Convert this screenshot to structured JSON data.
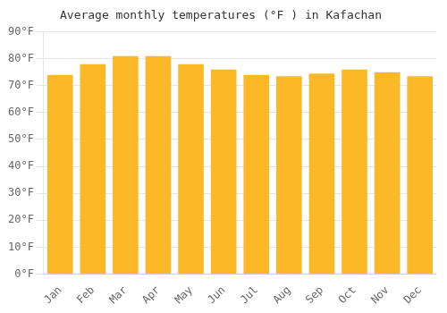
{
  "chart_data": {
    "type": "bar",
    "title": "Average monthly temperatures (°F ) in Kafachan",
    "categories": [
      "Jan",
      "Feb",
      "Mar",
      "Apr",
      "May",
      "Jun",
      "Jul",
      "Aug",
      "Sep",
      "Oct",
      "Nov",
      "Dec"
    ],
    "values": [
      74,
      78,
      81,
      81,
      78,
      76,
      74,
      73.5,
      74.5,
      76,
      75,
      73.5
    ],
    "color": "#FDB827",
    "ylim": [
      0,
      90
    ],
    "yticks": [
      {
        "value": 0,
        "label": "0°F"
      },
      {
        "value": 10,
        "label": "10°F"
      },
      {
        "value": 20,
        "label": "20°F"
      },
      {
        "value": 30,
        "label": "30°F"
      },
      {
        "value": 40,
        "label": "40°F"
      },
      {
        "value": 50,
        "label": "50°F"
      },
      {
        "value": 60,
        "label": "60°F"
      },
      {
        "value": 70,
        "label": "70°F"
      },
      {
        "value": 80,
        "label": "80°F"
      },
      {
        "value": 90,
        "label": "90°F"
      }
    ],
    "grid": true
  }
}
